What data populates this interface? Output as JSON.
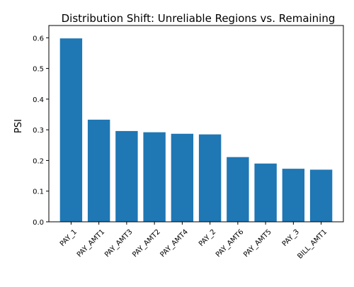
{
  "chart_data": {
    "type": "bar",
    "title": "Distribution Shift: Unreliable Regions vs. Remaining",
    "xlabel": "",
    "ylabel": "PSI",
    "categories": [
      "PAY_1",
      "PAY_AMT1",
      "PAY_AMT3",
      "PAY_AMT2",
      "PAY_AMT4",
      "PAY_2",
      "PAY_AMT6",
      "PAY_AMT5",
      "PAY_3",
      "BILL_AMT1"
    ],
    "values": [
      0.598,
      0.333,
      0.296,
      0.292,
      0.287,
      0.285,
      0.211,
      0.19,
      0.173,
      0.17
    ],
    "ylim": [
      0,
      0.64
    ],
    "yticks": [
      "0.0",
      "0.1",
      "0.2",
      "0.3",
      "0.4",
      "0.5",
      "0.6"
    ],
    "bar_color": "#1f77b4",
    "grid": false,
    "legend": "none"
  }
}
